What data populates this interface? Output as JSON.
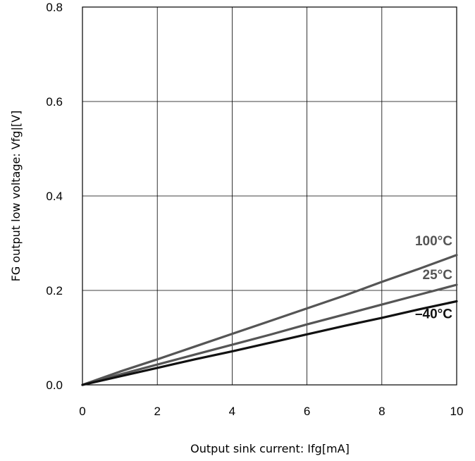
{
  "chart_data": {
    "type": "line",
    "title": "",
    "xlabel": "Output sink current: Ifg[mA]",
    "ylabel": "FG output low voltage: Vfg|[V]",
    "xlim": [
      0,
      10
    ],
    "ylim": [
      0,
      0.8
    ],
    "x_ticks": [
      0,
      2,
      4,
      6,
      8,
      10
    ],
    "x_tick_labels": [
      "0",
      "2",
      "4",
      "6",
      "8",
      "10"
    ],
    "y_ticks": [
      0,
      0.2,
      0.4,
      0.6,
      0.8
    ],
    "y_tick_labels": [
      "0.0",
      "0.2",
      "0.4",
      "0.6",
      "0.8"
    ],
    "grid": true,
    "series": [
      {
        "name": "100°C",
        "color": "#555555",
        "x": [
          0,
          1,
          2,
          3,
          4,
          5,
          6,
          7,
          8,
          9,
          10
        ],
        "y": [
          0,
          0.028,
          0.054,
          0.081,
          0.108,
          0.135,
          0.162,
          0.189,
          0.218,
          0.246,
          0.275
        ]
      },
      {
        "name": "25°C",
        "color": "#555555",
        "x": [
          0,
          1,
          2,
          3,
          4,
          5,
          6,
          7,
          8,
          9,
          10
        ],
        "y": [
          0,
          0.022,
          0.043,
          0.064,
          0.085,
          0.106,
          0.128,
          0.149,
          0.17,
          0.191,
          0.212
        ]
      },
      {
        "name": "–40°C",
        "color": "#111111",
        "x": [
          0,
          1,
          2,
          3,
          4,
          5,
          6,
          7,
          8,
          9,
          10
        ],
        "y": [
          0,
          0.018,
          0.036,
          0.054,
          0.071,
          0.089,
          0.107,
          0.125,
          0.142,
          0.16,
          0.177
        ]
      }
    ]
  }
}
